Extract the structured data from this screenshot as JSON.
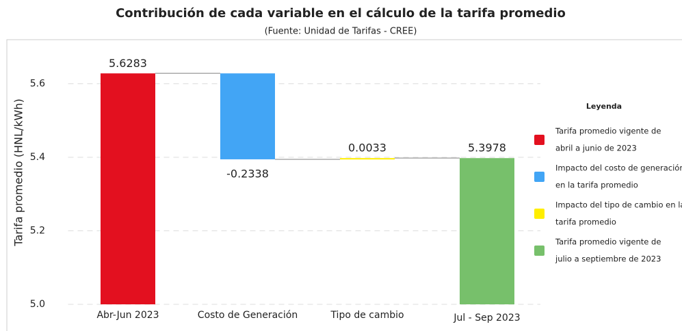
{
  "chart_data": {
    "type": "waterfall",
    "title": "Contribución de cada variable en el cálculo de la tarifa promedio",
    "subtitle": "(Fuente: Unidad de Tarifas - CREE)",
    "y_label": "Tarifa promedio (HNL/kWh)",
    "categories": [
      "Abr-Jun 2023",
      "Costo de Generación",
      "Tipo de cambio",
      "Jul - Sep 2023"
    ],
    "values": [
      5.6283,
      -0.2338,
      0.0033,
      5.3978
    ],
    "measures": [
      "absolute",
      "relative",
      "relative",
      "total"
    ],
    "colors": [
      "#e3101f",
      "#42a5f5",
      "#ffee00",
      "#77c06b"
    ],
    "ylim": [
      5.0,
      5.72
    ],
    "yticks": [
      {
        "value": 5.0,
        "label": "5.0"
      },
      5.2,
      5.4,
      5.6
    ],
    "grid": true,
    "legend": {
      "title": "Leyenda",
      "position": "right",
      "items": [
        [
          "Tarifa promedio vigente de",
          "abril a junio de 2023"
        ],
        [
          "Impacto del costo de generación",
          "en la tarifa promedio"
        ],
        [
          "Impacto del tipo de cambio en la",
          "tarifa promedio"
        ],
        [
          "Tarifa promedio vigente de",
          "julio a septiembre de 2023"
        ]
      ]
    }
  }
}
